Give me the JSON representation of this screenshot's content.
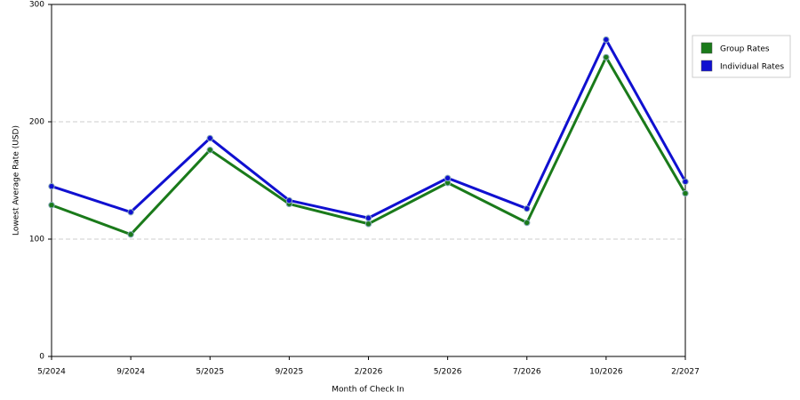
{
  "chart_data": {
    "type": "line",
    "xlabel": "Month of Check In",
    "ylabel": "Lowest Average Rate (USD)",
    "categories": [
      "5/2024",
      "9/2024",
      "5/2025",
      "9/2025",
      "2/2026",
      "5/2026",
      "7/2026",
      "10/2026",
      "2/2027"
    ],
    "series": [
      {
        "name": "Group Rates",
        "color": "#1a7a1a",
        "values": [
          129,
          104,
          176,
          130,
          113,
          148,
          114,
          255,
          139
        ]
      },
      {
        "name": "Individual Rates",
        "color": "#1010d0",
        "values": [
          145,
          123,
          186,
          133,
          118,
          152,
          126,
          270,
          149
        ]
      }
    ],
    "ylim": [
      0,
      300
    ],
    "yticks": [
      0,
      100,
      200,
      300
    ],
    "grid": true,
    "legend": "right"
  }
}
